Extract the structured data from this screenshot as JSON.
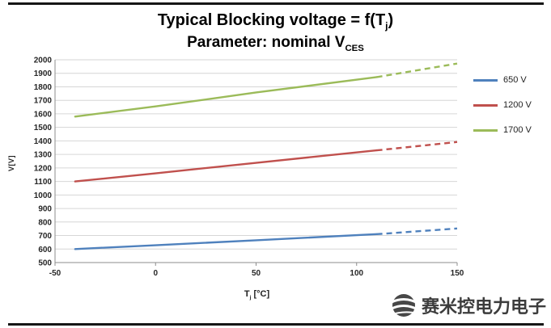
{
  "title": {
    "line1_pre": "Typical Blocking voltage = f(T",
    "line1_sub": "j",
    "line1_post": ")",
    "line2_pre": "Parameter: nominal V",
    "line2_sub": "CES"
  },
  "axis": {
    "y_label": "V[V]",
    "x_label_main": "T",
    "x_label_sub": "j",
    "x_label_rest": " [°C]"
  },
  "watermark": {
    "text": "赛米控电力电子"
  },
  "chart_data": {
    "type": "line",
    "title": "Typical Blocking voltage = f(Tj) — Parameter: nominal VCES",
    "xlabel": "Tj [°C]",
    "ylabel": "V[V]",
    "xlim": [
      -50,
      150
    ],
    "ylim": [
      500,
      2000
    ],
    "x_ticks": [
      -50,
      0,
      50,
      100,
      150
    ],
    "y_ticks": [
      500,
      600,
      700,
      800,
      900,
      1000,
      1100,
      1200,
      1300,
      1400,
      1500,
      1600,
      1700,
      1800,
      1900,
      2000
    ],
    "grid": true,
    "legend_position": "right",
    "series": [
      {
        "name": "650 V",
        "color": "#4f81bd",
        "solid_x": [
          -40,
          0,
          50,
          110
        ],
        "solid_y": [
          600,
          628,
          665,
          710
        ],
        "dashed_x": [
          110,
          150
        ],
        "dashed_y": [
          710,
          752
        ]
      },
      {
        "name": "1200 V",
        "color": "#c0504d",
        "solid_x": [
          -40,
          0,
          50,
          110
        ],
        "solid_y": [
          1100,
          1160,
          1238,
          1330
        ],
        "dashed_x": [
          110,
          150
        ],
        "dashed_y": [
          1330,
          1392
        ]
      },
      {
        "name": "1700 V",
        "color": "#9bbb59",
        "solid_x": [
          -40,
          0,
          50,
          110
        ],
        "solid_y": [
          1580,
          1655,
          1758,
          1872
        ],
        "dashed_x": [
          110,
          150
        ],
        "dashed_y": [
          1872,
          1972
        ]
      }
    ]
  }
}
